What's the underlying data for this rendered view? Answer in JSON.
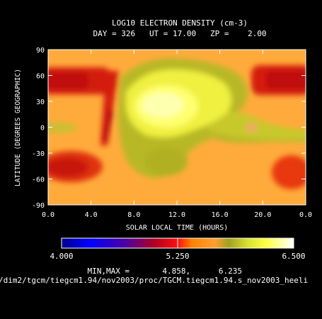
{
  "chart_data": {
    "type": "heatmap",
    "title": "LOG10 ELECTRON DENSITY (cm-3)",
    "subtitle": "DAY = 326   UT = 17.00   ZP =    2.00",
    "xlabel": "SOLAR LOCAL TIME (HOURS)",
    "ylabel": "LATITUDE (DEGREES GEOGRAPHIC)",
    "xticks": [
      "0.0",
      "4.0",
      "8.0",
      "12.0",
      "16.0",
      "20.0",
      "0.0"
    ],
    "yticks": [
      "90",
      "60",
      "30",
      "0",
      "-30",
      "-60",
      "-90"
    ],
    "colorbar": {
      "min": 4.0,
      "max": 6.5,
      "ticks": [
        "4.000",
        "5.250",
        "6.500"
      ]
    },
    "range_text": "MIN,MAX =       4.858,      6.235",
    "footer": "/dim2/tgcm/tiegcm1.94/nov2003/proc/TGCM.tiegcm1.94.s_nov2003_heeli",
    "background_value": 5.5,
    "features": [
      {
        "desc": "dayside density maximum",
        "x": 10.5,
        "y": 5,
        "value": 6.2
      },
      {
        "desc": "northern red band morning",
        "x": 2.5,
        "y": 48,
        "value": 5.15
      },
      {
        "desc": "dark spot",
        "x": 5.5,
        "y": 50,
        "value": 5.0
      },
      {
        "desc": "morning red streak",
        "x": 5.0,
        "y": 12,
        "value": 5.12
      },
      {
        "desc": "southern red band morning",
        "x": 2.0,
        "y": -40,
        "value": 5.15
      },
      {
        "desc": "northern red band evening",
        "x": 22.5,
        "y": 48,
        "value": 5.15
      },
      {
        "desc": "southern red band evening",
        "x": 23.0,
        "y": -45,
        "value": 5.25
      },
      {
        "desc": "afternoon green band",
        "x": 17.5,
        "y": -5,
        "value": 5.9
      },
      {
        "desc": "southern green lobe",
        "x": 10.0,
        "y": -42,
        "value": 5.8
      }
    ]
  }
}
